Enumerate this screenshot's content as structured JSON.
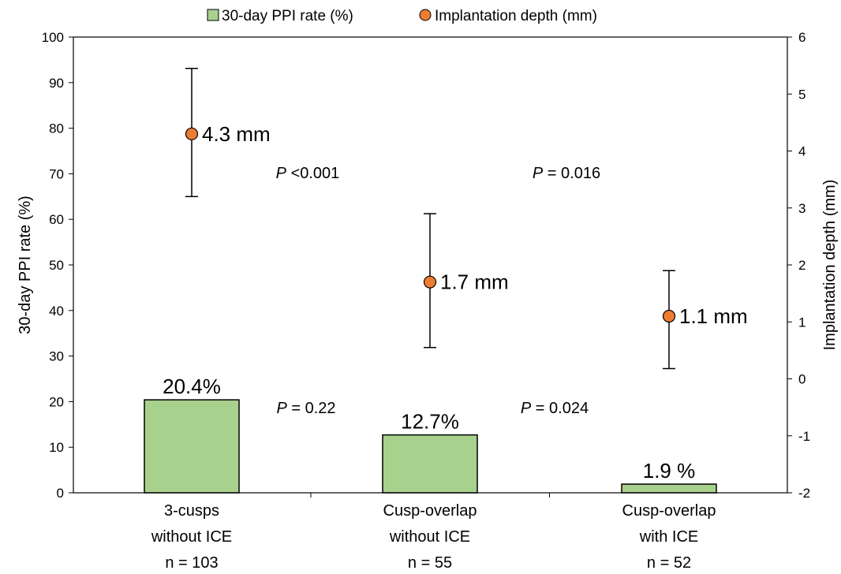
{
  "chart_data": {
    "type": "bar",
    "categories": [
      [
        "3-cusps",
        "without ICE",
        "n = 103"
      ],
      [
        "Cusp-overlap",
        "without ICE",
        "n = 55"
      ],
      [
        "Cusp-overlap",
        "with ICE",
        "n = 52"
      ]
    ],
    "legend": {
      "placement": "top",
      "entries": [
        {
          "label": "30-day PPI rate (%)",
          "marker": "square",
          "color": "#a9d18e"
        },
        {
          "label": "Implantation depth (mm)",
          "marker": "circle",
          "color": "#ed7d31"
        }
      ]
    },
    "series": [
      {
        "name": "30-day PPI rate (%)",
        "type": "bar",
        "axis": "left",
        "values": [
          20.4,
          12.7,
          1.9
        ],
        "labels": [
          "20.4%",
          "12.7%",
          "1.9 %"
        ],
        "color": "#a9d18e"
      },
      {
        "name": "Implantation depth (mm)",
        "type": "scatter",
        "axis": "right",
        "values": [
          4.3,
          1.7,
          1.1
        ],
        "error_low": [
          3.2,
          0.55,
          0.18
        ],
        "error_high": [
          5.45,
          2.9,
          1.9
        ],
        "labels": [
          "4.3 mm",
          "1.7 mm",
          "1.1 mm"
        ],
        "color": "#ed7d31"
      }
    ],
    "y_left": {
      "label": "30-day PPI rate (%)",
      "min": 0,
      "max": 100,
      "step": 10
    },
    "y_right": {
      "label": "Implantation depth (mm)",
      "min": -2,
      "max": 6,
      "step": 1
    },
    "grid": false,
    "annotations": [
      {
        "p": "P",
        "text": " <0.001",
        "between": [
          0,
          1
        ],
        "series": "depth"
      },
      {
        "p": "P",
        "text": " = 0.016",
        "between": [
          1,
          2
        ],
        "series": "depth"
      },
      {
        "p": "P",
        "text": " = 0.22",
        "between": [
          0,
          1
        ],
        "series": "rate"
      },
      {
        "p": "P",
        "text": " = 0.024",
        "between": [
          1,
          2
        ],
        "series": "rate"
      }
    ]
  }
}
